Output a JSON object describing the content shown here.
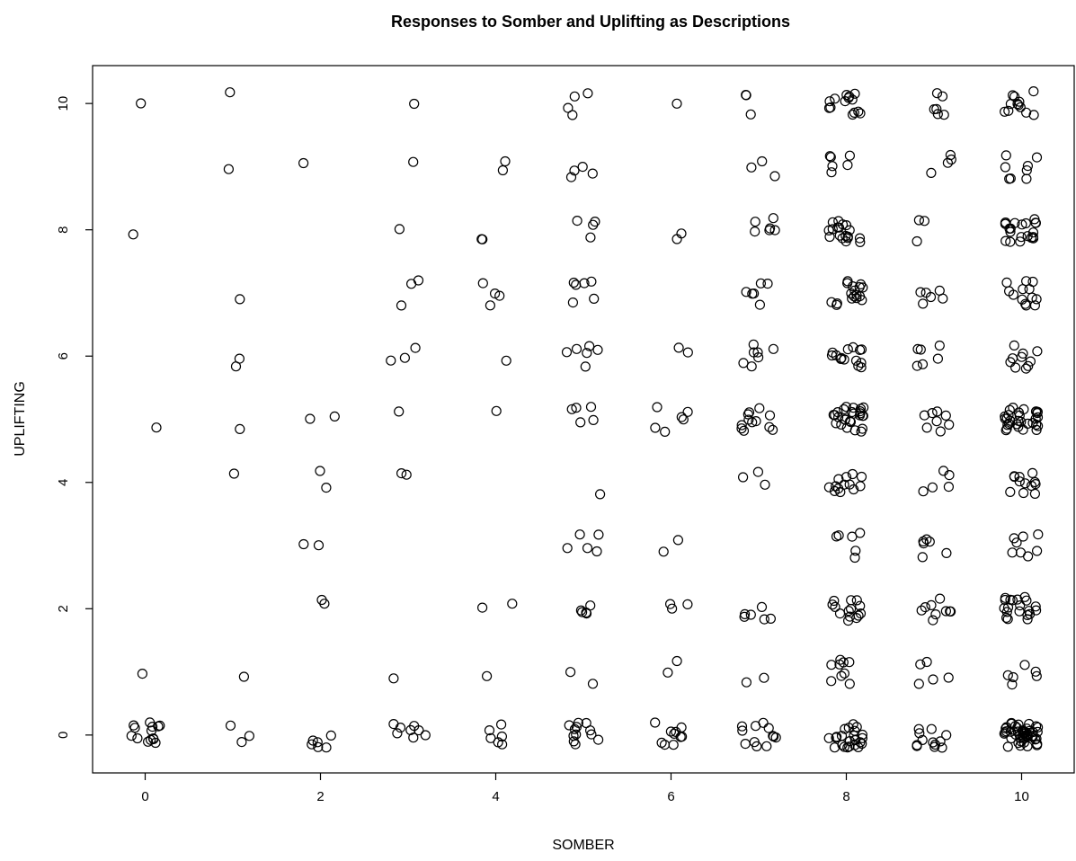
{
  "chart_data": {
    "type": "scatter",
    "title": "Responses to Somber and Uplifting as Descriptions",
    "xlabel": "SOMBER",
    "ylabel": "UPLIFTING",
    "xlim": [
      -0.6,
      10.6
    ],
    "ylim": [
      -0.6,
      10.6
    ],
    "xticks": [
      0,
      2,
      4,
      6,
      8,
      10
    ],
    "yticks": [
      0,
      2,
      4,
      6,
      8,
      10
    ],
    "grid": false,
    "legend": "none",
    "marker": "open-circle",
    "jitter": "points are jittered around integer response values",
    "counts": [
      [
        14,
        1,
        0,
        0,
        0,
        1,
        0,
        0,
        1,
        0,
        1
      ],
      [
        3,
        1,
        0,
        0,
        1,
        1,
        2,
        1,
        0,
        1,
        1
      ],
      [
        6,
        0,
        2,
        2,
        2,
        2,
        0,
        0,
        0,
        1,
        0
      ],
      [
        8,
        1,
        0,
        0,
        2,
        1,
        3,
        3,
        1,
        1,
        1
      ],
      [
        6,
        1,
        2,
        0,
        0,
        1,
        1,
        4,
        2,
        2,
        0
      ],
      [
        12,
        2,
        5,
        5,
        1,
        5,
        6,
        6,
        4,
        4,
        4
      ],
      [
        10,
        2,
        3,
        2,
        0,
        6,
        2,
        0,
        2,
        0,
        1
      ],
      [
        12,
        2,
        6,
        0,
        3,
        12,
        7,
        6,
        6,
        3,
        3
      ],
      [
        24,
        9,
        14,
        6,
        13,
        26,
        14,
        17,
        18,
        6,
        14
      ],
      [
        12,
        5,
        9,
        6,
        5,
        8,
        6,
        6,
        3,
        4,
        6
      ],
      [
        48,
        6,
        20,
        8,
        12,
        30,
        10,
        13,
        21,
        8,
        12
      ]
    ],
    "counts_note": "counts[i][j] = number of responses with SOMBER = i and UPLIFTING = j"
  }
}
